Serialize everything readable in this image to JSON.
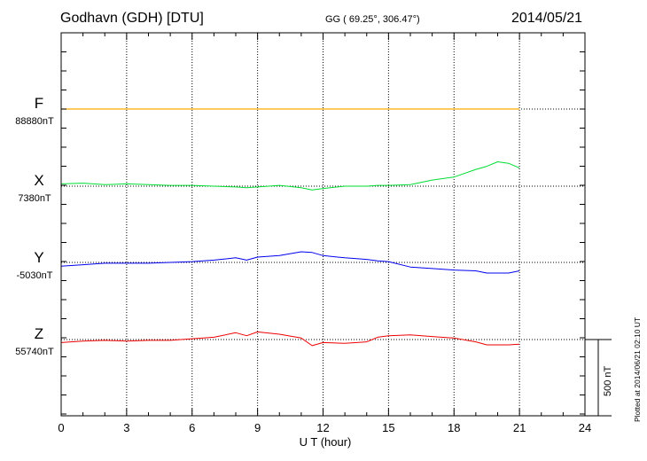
{
  "header": {
    "station": "Godhavn (GDH)  [DTU]",
    "coords": "GG ( 69.25°, 306.47°)",
    "date": "2014/05/21"
  },
  "footer": {
    "plotted": "Plotted at 2014/06/21 02:10 UT"
  },
  "scale_bar": {
    "label": "500 nT",
    "value_nT": 500
  },
  "components": [
    {
      "label": "F",
      "baseline": "88880nT",
      "color": "#ffaa00"
    },
    {
      "label": "X",
      "baseline": "7380nT",
      "color": "#00dd33"
    },
    {
      "label": "Y",
      "baseline": "-5030nT",
      "color": "#0000ee"
    },
    {
      "label": "Z",
      "baseline": "55740nT",
      "color": "#ee0000"
    }
  ],
  "chart_data": {
    "type": "line",
    "title": "Godhavn (GDH)  [DTU]",
    "xlabel": "U T (hour)",
    "ylabel": "",
    "xlim": [
      0,
      24
    ],
    "x_ticks": [
      "0",
      "3",
      "6",
      "9",
      "12",
      "15",
      "18",
      "21",
      "24"
    ],
    "grid": true,
    "units": "nT offset from baseline",
    "x": [
      0,
      1,
      2,
      3,
      4,
      5,
      6,
      7,
      8,
      8.5,
      9,
      10,
      11,
      11.5,
      12,
      13,
      14,
      14.5,
      15,
      16,
      17,
      18,
      19,
      19.5,
      20,
      20.5,
      21
    ],
    "series": [
      {
        "name": "F",
        "values": [
          0,
          0,
          0,
          0,
          0,
          0,
          0,
          0,
          0,
          0,
          0,
          0,
          0,
          0,
          0,
          0,
          0,
          0,
          0,
          0,
          0,
          0,
          0,
          0,
          0,
          0,
          0
        ]
      },
      {
        "name": "X",
        "values": [
          15,
          20,
          10,
          15,
          10,
          5,
          5,
          0,
          -5,
          -10,
          -5,
          5,
          -10,
          -25,
          -15,
          0,
          0,
          5,
          5,
          10,
          40,
          60,
          110,
          130,
          160,
          150,
          120
        ]
      },
      {
        "name": "Y",
        "values": [
          -25,
          -15,
          -5,
          -5,
          -5,
          0,
          5,
          15,
          30,
          15,
          35,
          45,
          70,
          65,
          45,
          30,
          20,
          10,
          5,
          -30,
          -40,
          -50,
          -55,
          -70,
          -70,
          -70,
          -55
        ]
      },
      {
        "name": "Z",
        "values": [
          -20,
          -10,
          -5,
          -10,
          -5,
          -5,
          5,
          15,
          45,
          25,
          50,
          35,
          10,
          -40,
          -20,
          -25,
          -15,
          15,
          25,
          30,
          20,
          10,
          -15,
          -35,
          -35,
          -35,
          -30
        ]
      }
    ]
  }
}
